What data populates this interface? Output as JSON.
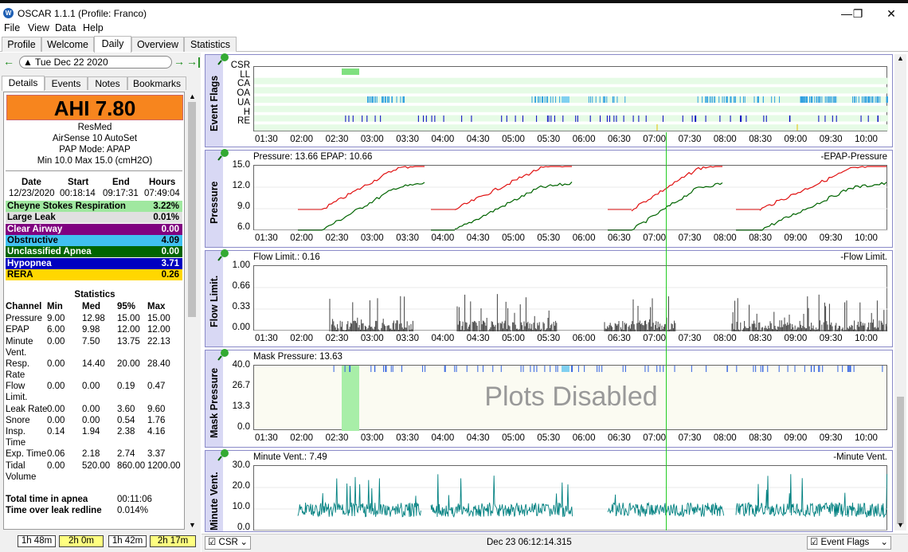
{
  "window": {
    "title": "OSCAR 1.1.1 (Profile: Franco)",
    "logo": "W",
    "minimize": "—",
    "maximize": "❐",
    "close": "✕"
  },
  "menu": [
    "File",
    "View",
    "Data",
    "Help"
  ],
  "tabs": [
    "Profile",
    "Welcome",
    "Daily",
    "Overview",
    "Statistics"
  ],
  "active_tab": "Daily",
  "date": {
    "value": "Tue Dec 22 2020",
    "prev": "←",
    "next": "→",
    "last": "→|"
  },
  "subtabs": [
    "Details",
    "Events",
    "Notes",
    "Bookmarks"
  ],
  "details": {
    "ahi": "AHI 7.80",
    "device": [
      "ResMed",
      "AirSense 10 AutoSet",
      "PAP Mode: APAP",
      "Min 10.0 Max 15.0 (cmH2O)"
    ],
    "session_headers": [
      "Date",
      "Start",
      "End",
      "Hours"
    ],
    "session_values": [
      "12/23/2020",
      "00:18:14",
      "09:17:31",
      "07:49:04"
    ],
    "events": [
      {
        "name": "Cheyne Stokes Respiration",
        "value": "3.22%",
        "bg": "#a0e8a0",
        "fg": "#000"
      },
      {
        "name": "Large Leak",
        "value": "0.01%",
        "bg": "#e0e0e0",
        "fg": "#000"
      },
      {
        "name": "Clear Airway",
        "value": "0.00",
        "bg": "#800080",
        "fg": "#fff"
      },
      {
        "name": "Obstructive",
        "value": "4.09",
        "bg": "#40c0f0",
        "fg": "#000"
      },
      {
        "name": "Unclassified Apnea",
        "value": "0.00",
        "bg": "#006400",
        "fg": "#fff"
      },
      {
        "name": "Hypopnea",
        "value": "3.71",
        "bg": "#0000c0",
        "fg": "#fff"
      },
      {
        "name": "RERA",
        "value": "0.26",
        "bg": "#ffd700",
        "fg": "#000"
      }
    ],
    "stats_title": "Statistics",
    "stats_headers": [
      "Channel",
      "Min",
      "Med",
      "95%",
      "Max"
    ],
    "stats": [
      {
        "name": [
          "Pressure"
        ],
        "min": "9.00",
        "med": "12.98",
        "p95": "15.00",
        "max": "15.00"
      },
      {
        "name": [
          "EPAP"
        ],
        "min": "6.00",
        "med": "9.98",
        "p95": "12.00",
        "max": "12.00"
      },
      {
        "name": [
          "Minute",
          "Vent."
        ],
        "min": "0.00",
        "med": "7.50",
        "p95": "13.75",
        "max": "22.13"
      },
      {
        "name": [
          "Resp.",
          "Rate"
        ],
        "min": "0.00",
        "med": "14.40",
        "p95": "20.00",
        "max": "28.40"
      },
      {
        "name": [
          "Flow",
          "Limit."
        ],
        "min": "0.00",
        "med": "0.00",
        "p95": "0.19",
        "max": "0.47"
      },
      {
        "name": [
          "Leak Rate"
        ],
        "min": "0.00",
        "med": "0.00",
        "p95": "3.60",
        "max": "9.60"
      },
      {
        "name": [
          "Snore"
        ],
        "min": "0.00",
        "med": "0.00",
        "p95": "0.54",
        "max": "1.76"
      },
      {
        "name": [
          "Insp.",
          "Time"
        ],
        "min": "0.14",
        "med": "1.94",
        "p95": "2.38",
        "max": "4.16"
      },
      {
        "name": [
          "Exp. Time"
        ],
        "min": "0.06",
        "med": "2.18",
        "p95": "2.74",
        "max": "3.37"
      },
      {
        "name": [
          "Tidal",
          "Volume"
        ],
        "min": "0.00",
        "med": "520.00",
        "p95": "860.00",
        "max": "1200.00"
      }
    ],
    "apnea_label": "Total time in apnea",
    "apnea_value": "00:11:06",
    "leak_label": "Time over leak redline",
    "leak_value": "0.014%"
  },
  "bottom_pills": [
    {
      "label": "1h 48m",
      "bg": "#fff"
    },
    {
      "label": "2h 0m",
      "bg": "#ffff80"
    },
    {
      "label": "1h 42m",
      "bg": "#fff"
    },
    {
      "label": "2h 17m",
      "bg": "#ffff80"
    }
  ],
  "xticks": [
    "01:30",
    "02:00",
    "02:30",
    "03:00",
    "03:30",
    "04:00",
    "04:30",
    "05:00",
    "05:30",
    "06:00",
    "06:30",
    "07:00",
    "07:30",
    "08:00",
    "08:30",
    "09:00",
    "09:30",
    "10:00"
  ],
  "graphs": {
    "flags": {
      "ylabel": "Event Flags",
      "rows": [
        "CSR",
        "LL",
        "CA",
        "OA",
        "UA",
        "H",
        "RE"
      ]
    },
    "pressure": {
      "ylabel": "Pressure",
      "readout": "Pressure: 13.66 EPAP: 10.66",
      "legend": "-EPAP-Pressure",
      "yticks": [
        "15.0",
        "12.0",
        "9.0",
        "6.0"
      ]
    },
    "flow": {
      "ylabel": "Flow Limit.",
      "readout": "Flow Limit.: 0.16",
      "legend": "-Flow Limit.",
      "yticks": [
        "1.00",
        "0.66",
        "0.33",
        "0.00"
      ]
    },
    "mask": {
      "ylabel": "Mask Pressure",
      "readout": "Mask Pressure: 13.63",
      "disabled": "Plots Disabled",
      "yticks": [
        "40.0",
        "26.7",
        "13.3",
        "0.0"
      ]
    },
    "minvent": {
      "ylabel": "Minute Vent.",
      "readout": "Minute Vent.: 7.49",
      "legend": "-Minute Vent.",
      "yticks": [
        "30.0",
        "20.0",
        "10.0",
        "0.0"
      ]
    }
  },
  "status": {
    "left_combo": "CSR",
    "center": "Dec 23 06:12:14.315",
    "right_combo": "Event Flags"
  },
  "colors": {
    "pressure": "#e01010",
    "epap": "#006400",
    "minvent": "#008080",
    "flow": "#404040",
    "cursor": "#22cc22"
  }
}
